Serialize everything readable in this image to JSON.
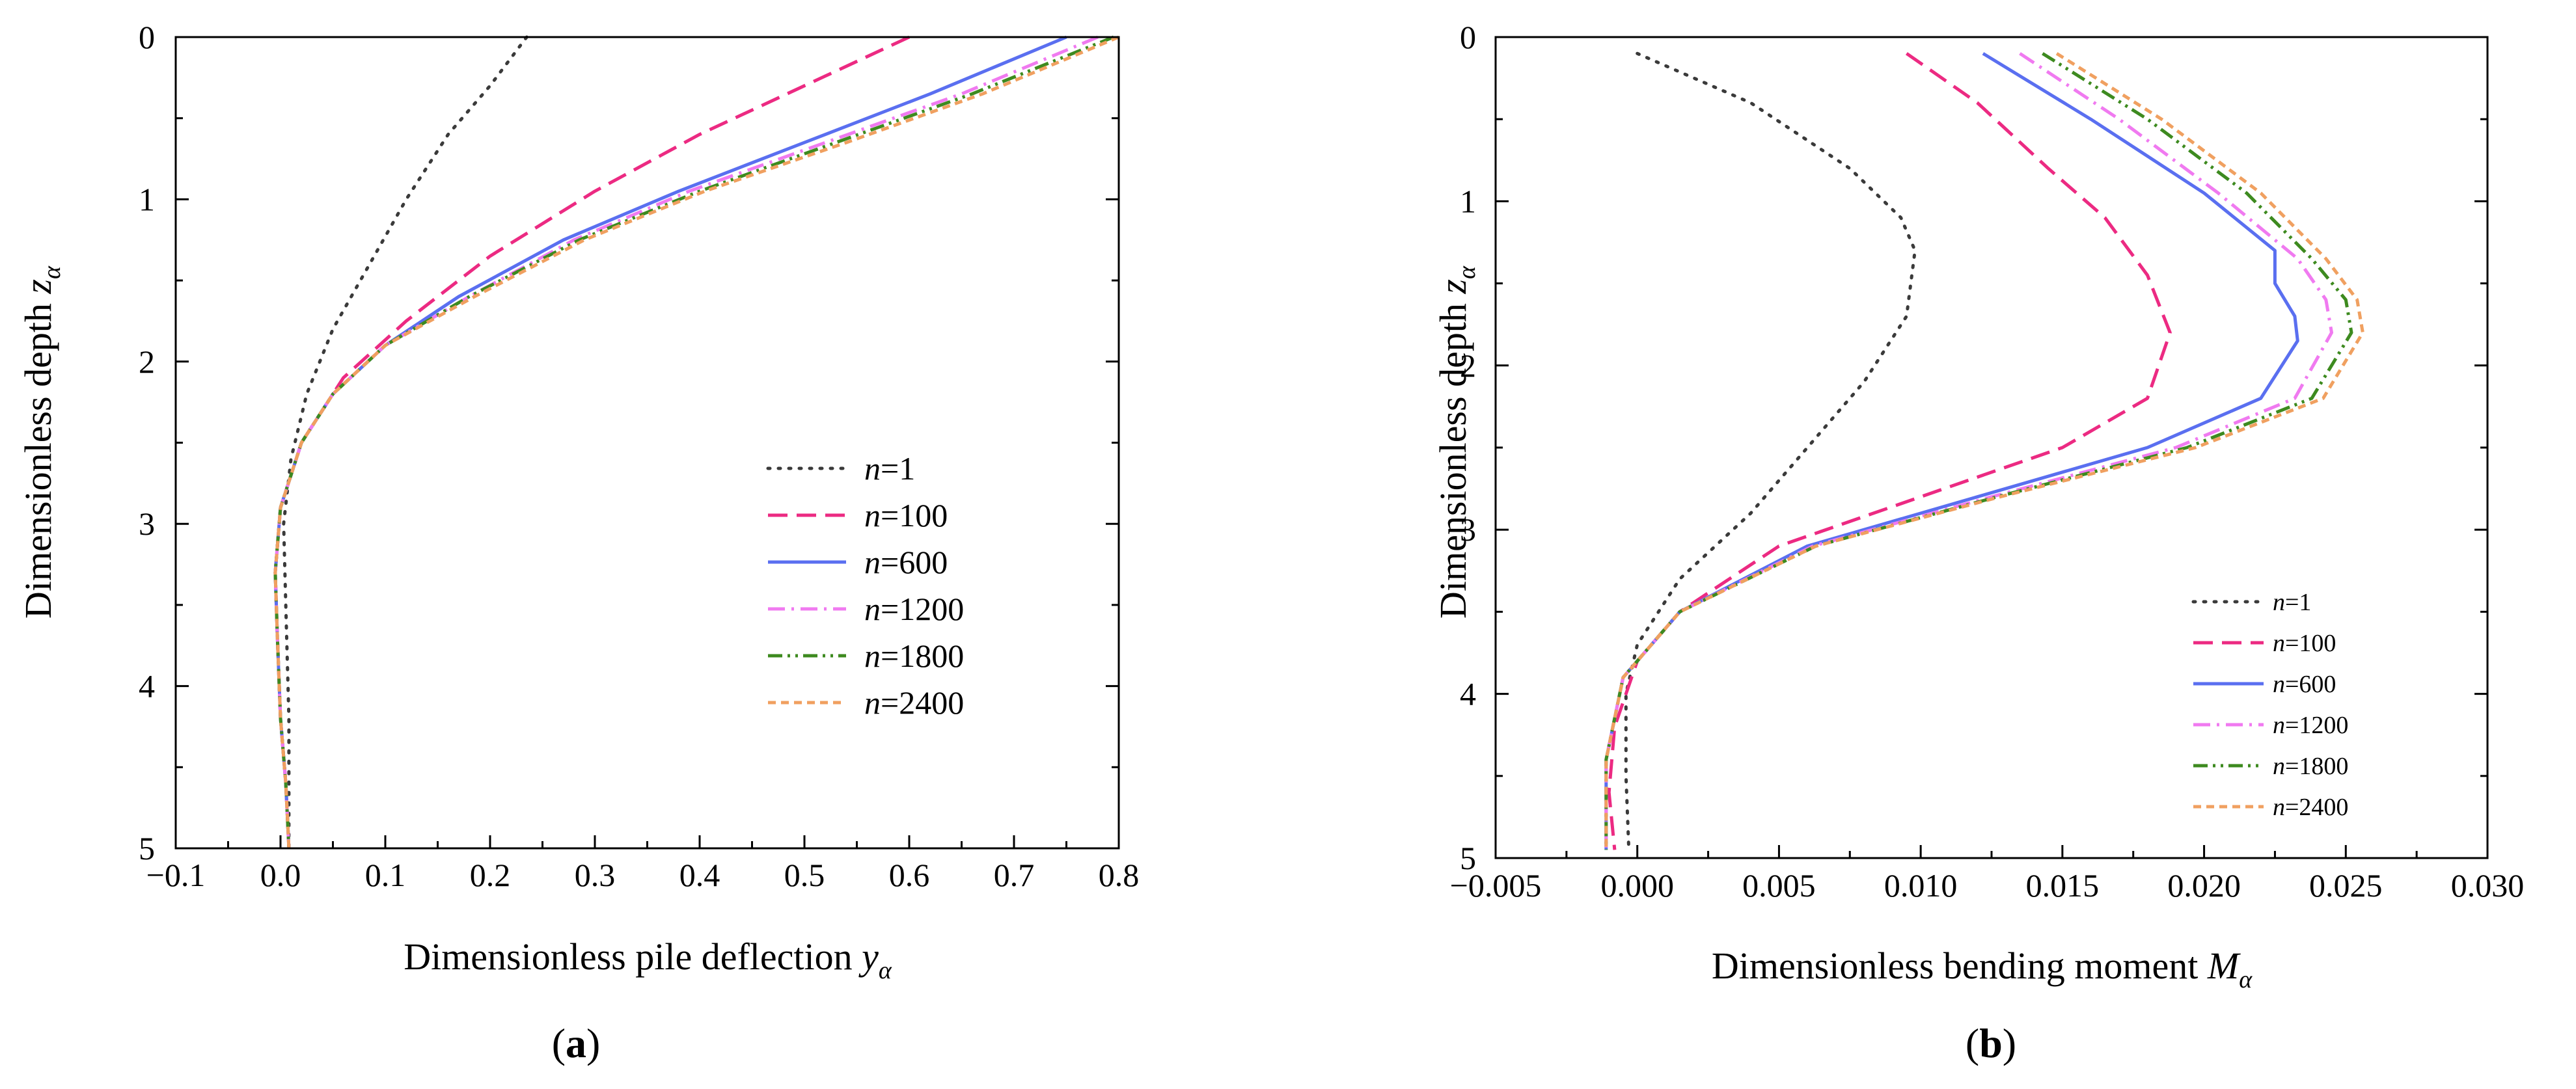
{
  "colors": {
    "n=1": "#3a3a3a",
    "n=100": "#ec2a82",
    "n=600": "#5a6ff0",
    "n=1200": "#f07af0",
    "n=1800": "#3d8a1f",
    "n=2400": "#f0a060"
  },
  "chart_data": [
    {
      "type": "line",
      "panel_label": "a",
      "xlabel": "Dimensionless pile deflection",
      "xlabel_symbol": "y",
      "xlabel_sub": "α",
      "ylabel": "Dimensionless depth",
      "ylabel_symbol": "z",
      "ylabel_sub": "α",
      "xlim": [
        -0.1,
        0.8
      ],
      "ylim": [
        0,
        5
      ],
      "y_inverted": true,
      "xticks": [
        "−0.1",
        "0.0",
        "0.1",
        "0.2",
        "0.3",
        "0.4",
        "0.5",
        "0.6",
        "0.7",
        "0.8"
      ],
      "yticks": [
        "0",
        "1",
        "2",
        "3",
        "4",
        "5"
      ],
      "legend_position": "center-right",
      "series": [
        {
          "name": "n=1",
          "label_var": "n",
          "label_val": "=1",
          "style": "dotted",
          "x": [
            0.235,
            0.2,
            0.16,
            0.12,
            0.085,
            0.05,
            0.025,
            0.01,
            0.003,
            0.005,
            0.008,
            0.008
          ],
          "y": [
            0,
            0.3,
            0.6,
            1.0,
            1.4,
            1.8,
            2.2,
            2.6,
            3.0,
            3.5,
            4.2,
            5.0
          ]
        },
        {
          "name": "n=100",
          "label_var": "n",
          "label_val": "=100",
          "style": "dashed",
          "x": [
            0.6,
            0.5,
            0.4,
            0.3,
            0.2,
            0.12,
            0.06,
            0.02,
            0.0,
            -0.005,
            -0.003,
            0.0,
            0.005,
            0.008
          ],
          "y": [
            0,
            0.3,
            0.6,
            0.95,
            1.35,
            1.75,
            2.1,
            2.5,
            2.9,
            3.3,
            3.7,
            4.2,
            4.6,
            5.0
          ]
        },
        {
          "name": "n=600",
          "label_var": "n",
          "label_val": "=600",
          "style": "solid",
          "x": [
            0.75,
            0.62,
            0.5,
            0.38,
            0.27,
            0.17,
            0.1,
            0.05,
            0.02,
            0.0,
            -0.005,
            -0.003,
            0.0,
            0.005,
            0.008
          ],
          "y": [
            0,
            0.35,
            0.65,
            0.95,
            1.25,
            1.6,
            1.9,
            2.2,
            2.5,
            2.9,
            3.3,
            3.7,
            4.2,
            4.6,
            5.0
          ]
        },
        {
          "name": "n=1200",
          "label_var": "n",
          "label_val": "=1200",
          "style": "dashdot",
          "x": [
            0.78,
            0.65,
            0.52,
            0.39,
            0.28,
            0.18,
            0.1,
            0.05,
            0.02,
            0.0,
            -0.005,
            -0.003,
            0.0,
            0.005,
            0.008
          ],
          "y": [
            0,
            0.35,
            0.65,
            0.95,
            1.25,
            1.6,
            1.9,
            2.2,
            2.5,
            2.9,
            3.3,
            3.7,
            4.2,
            4.6,
            5.0
          ]
        },
        {
          "name": "n=1800",
          "label_var": "n",
          "label_val": "=1800",
          "style": "dashdotdot",
          "x": [
            0.795,
            0.66,
            0.53,
            0.4,
            0.285,
            0.18,
            0.1,
            0.05,
            0.02,
            0.0,
            -0.005,
            -0.003,
            0.0,
            0.005,
            0.008
          ],
          "y": [
            0,
            0.35,
            0.65,
            0.95,
            1.25,
            1.6,
            1.9,
            2.2,
            2.5,
            2.9,
            3.3,
            3.7,
            4.2,
            4.6,
            5.0
          ]
        },
        {
          "name": "n=2400",
          "label_var": "n",
          "label_val": "=2400",
          "style": "shortdash",
          "x": [
            0.8,
            0.67,
            0.54,
            0.405,
            0.29,
            0.185,
            0.1,
            0.05,
            0.02,
            0.0,
            -0.005,
            -0.003,
            0.0,
            0.005,
            0.008
          ],
          "y": [
            0,
            0.35,
            0.65,
            0.95,
            1.25,
            1.6,
            1.9,
            2.2,
            2.5,
            2.9,
            3.3,
            3.7,
            4.2,
            4.6,
            5.0
          ]
        }
      ]
    },
    {
      "type": "line",
      "panel_label": "b",
      "xlabel": "Dimensionless bending moment",
      "xlabel_symbol": "M",
      "xlabel_sub": "α",
      "ylabel": "Dimensionless depth",
      "ylabel_symbol": "z",
      "ylabel_sub": "α",
      "xlim": [
        -0.005,
        0.03
      ],
      "ylim": [
        0,
        5
      ],
      "y_inverted": true,
      "xticks": [
        "−0.005",
        "0.000",
        "0.005",
        "0.010",
        "0.015",
        "0.020",
        "0.025",
        "0.030"
      ],
      "yticks": [
        "0",
        "1",
        "2",
        "3",
        "4",
        "5"
      ],
      "legend_position": "bottom-right",
      "series": [
        {
          "name": "n=1",
          "label_var": "n",
          "label_val": "=1",
          "style": "dotted",
          "x": [
            0.0,
            0.004,
            0.0075,
            0.0093,
            0.0098,
            0.0095,
            0.008,
            0.006,
            0.004,
            0.0015,
            0.0,
            -0.0004,
            -0.0004,
            -0.0003
          ],
          "y": [
            0.1,
            0.4,
            0.8,
            1.1,
            1.3,
            1.7,
            2.1,
            2.5,
            2.9,
            3.3,
            3.7,
            4.0,
            4.5,
            4.95
          ]
        },
        {
          "name": "n=100",
          "label_var": "n",
          "label_val": "=100",
          "style": "dashed",
          "x": [
            0.0095,
            0.012,
            0.0145,
            0.0165,
            0.018,
            0.0188,
            0.018,
            0.015,
            0.01,
            0.005,
            0.0015,
            0.0,
            -0.0008,
            -0.001,
            -0.0008
          ],
          "y": [
            0.1,
            0.4,
            0.8,
            1.1,
            1.45,
            1.8,
            2.2,
            2.5,
            2.8,
            3.1,
            3.5,
            3.8,
            4.2,
            4.6,
            4.95
          ]
        },
        {
          "name": "n=600",
          "label_var": "n",
          "label_val": "=600",
          "style": "solid",
          "x": [
            0.0122,
            0.016,
            0.02,
            0.0225,
            0.0225,
            0.0232,
            0.0233,
            0.022,
            0.018,
            0.012,
            0.006,
            0.0015,
            -0.0005,
            -0.0011,
            -0.0011
          ],
          "y": [
            0.1,
            0.5,
            0.95,
            1.3,
            1.5,
            1.7,
            1.85,
            2.2,
            2.5,
            2.8,
            3.1,
            3.5,
            3.9,
            4.4,
            4.95
          ]
        },
        {
          "name": "n=1200",
          "label_var": "n",
          "label_val": "=1200",
          "style": "dashdot",
          "x": [
            0.0135,
            0.017,
            0.0205,
            0.0233,
            0.0243,
            0.0245,
            0.0232,
            0.019,
            0.0125,
            0.0062,
            0.0015,
            -0.0005,
            -0.0011,
            -0.0011
          ],
          "y": [
            0.1,
            0.5,
            0.95,
            1.35,
            1.6,
            1.8,
            2.2,
            2.5,
            2.8,
            3.1,
            3.5,
            3.9,
            4.4,
            4.95
          ]
        },
        {
          "name": "n=1800",
          "label_var": "n",
          "label_val": "=1800",
          "style": "dashdotdot",
          "x": [
            0.0143,
            0.018,
            0.0215,
            0.0238,
            0.025,
            0.0252,
            0.0238,
            0.0194,
            0.0127,
            0.0063,
            0.0015,
            -0.0005,
            -0.0011,
            -0.0011
          ],
          "y": [
            0.1,
            0.5,
            0.95,
            1.35,
            1.6,
            1.8,
            2.2,
            2.5,
            2.8,
            3.1,
            3.5,
            3.9,
            4.4,
            4.95
          ]
        },
        {
          "name": "n=2400",
          "label_var": "n",
          "label_val": "=2400",
          "style": "shortdash",
          "x": [
            0.0148,
            0.0185,
            0.022,
            0.0243,
            0.0254,
            0.0256,
            0.0242,
            0.0197,
            0.0128,
            0.0063,
            0.0015,
            -0.0005,
            -0.0011,
            -0.0011
          ],
          "y": [
            0.1,
            0.5,
            0.95,
            1.35,
            1.6,
            1.8,
            2.2,
            2.5,
            2.8,
            3.1,
            3.5,
            3.9,
            4.4,
            4.95
          ]
        }
      ]
    }
  ]
}
